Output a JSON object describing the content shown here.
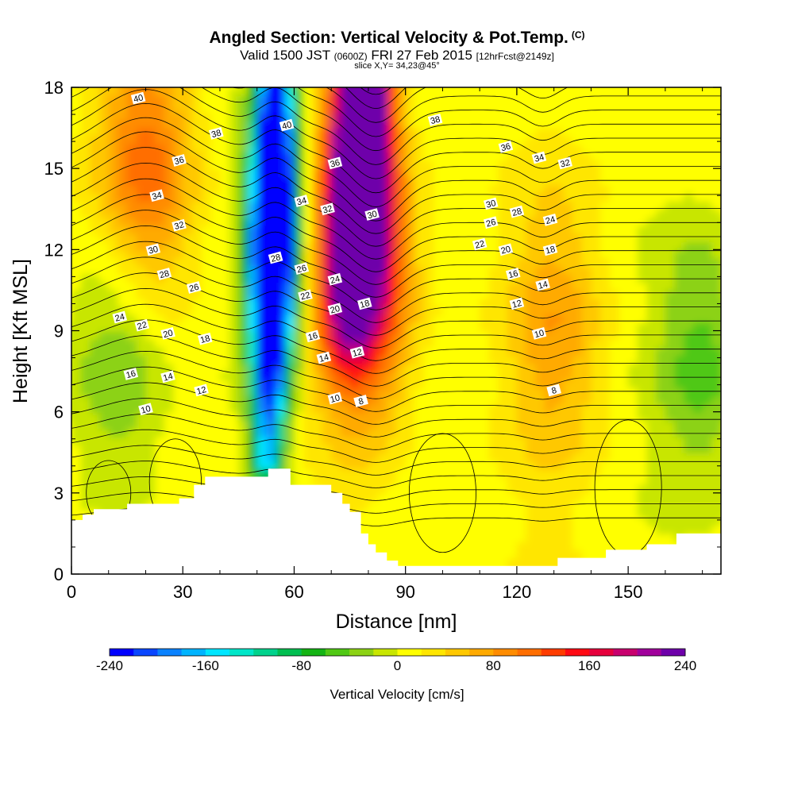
{
  "header": {
    "title_main": "Angled Section: Vertical Velocity & Pot.Temp.",
    "title_mark": "(C)",
    "valid_a": "Valid 1500 JST",
    "valid_b": "(0600Z)",
    "valid_c": "FRI 27 Feb 2015",
    "valid_d": "[12hrFcst@2149z]",
    "slice": "slice X,Y= 34,23@45°"
  },
  "chart_data": {
    "type": "heatmap",
    "xlabel": "Distance [nm]",
    "ylabel": "Height [Kft MSL]",
    "xlim": [
      0,
      175
    ],
    "ylim": [
      0,
      18
    ],
    "x_ticks": [
      0,
      30,
      60,
      90,
      120,
      150
    ],
    "y_ticks": [
      0,
      3,
      6,
      9,
      12,
      15,
      18
    ],
    "grid": false,
    "colorbar": {
      "title": "Vertical Velocity [cm/s]",
      "range": [
        -240,
        240
      ],
      "tick_values": [
        -240,
        -160,
        -80,
        0,
        80,
        160,
        240
      ],
      "colors": [
        "#0000ff",
        "#0a46ff",
        "#0a82ff",
        "#00b4ff",
        "#00e6ff",
        "#00e6c8",
        "#00d28c",
        "#00be50",
        "#14b414",
        "#50c814",
        "#8cd214",
        "#c8e600",
        "#ffff00",
        "#ffe600",
        "#ffc800",
        "#ffaa00",
        "#ff8c00",
        "#ff6e00",
        "#ff3c00",
        "#ff0a14",
        "#e6003c",
        "#c8006e",
        "#a0009b",
        "#6e00aa"
      ]
    },
    "velocity_features": [
      {
        "x": 54,
        "y": 11,
        "value": -180
      },
      {
        "x": 55,
        "y": 14,
        "value": -200
      },
      {
        "x": 78,
        "y": 16,
        "value": 220
      },
      {
        "x": 78,
        "y": 11,
        "value": 150
      },
      {
        "x": 20,
        "y": 15,
        "value": 100
      },
      {
        "x": 130,
        "y": 9,
        "value": 60
      },
      {
        "x": 13,
        "y": 8,
        "value": -60
      },
      {
        "x": 170,
        "y": 8,
        "value": -60
      }
    ],
    "terrain": [
      [
        0,
        2.0
      ],
      [
        3,
        2.2
      ],
      [
        6,
        2.4
      ],
      [
        15,
        2.6
      ],
      [
        29,
        2.8
      ],
      [
        33,
        3.3
      ],
      [
        36,
        3.6
      ],
      [
        52,
        3.6
      ],
      [
        53,
        3.9
      ],
      [
        58,
        3.9
      ],
      [
        59,
        3.3
      ],
      [
        67,
        3.3
      ],
      [
        70,
        3.0
      ],
      [
        73,
        2.6
      ],
      [
        75,
        2.3
      ],
      [
        78,
        1.5
      ],
      [
        80,
        1.1
      ],
      [
        82,
        0.8
      ],
      [
        85,
        0.5
      ],
      [
        88,
        0.3
      ],
      [
        128,
        0.3
      ],
      [
        131,
        0.6
      ],
      [
        142,
        0.6
      ],
      [
        144,
        0.9
      ],
      [
        152,
        0.9
      ],
      [
        155,
        1.1
      ],
      [
        160,
        1.1
      ],
      [
        163,
        1.5
      ],
      [
        175,
        1.5
      ]
    ],
    "contour_labels": [
      {
        "text": "40",
        "x": 18,
        "y": 17.6
      },
      {
        "text": "38",
        "x": 39,
        "y": 16.3
      },
      {
        "text": "36",
        "x": 29,
        "y": 15.3
      },
      {
        "text": "34",
        "x": 23,
        "y": 14.0
      },
      {
        "text": "32",
        "x": 29,
        "y": 12.9
      },
      {
        "text": "30",
        "x": 22,
        "y": 12.0
      },
      {
        "text": "28",
        "x": 25,
        "y": 11.1
      },
      {
        "text": "26",
        "x": 33,
        "y": 10.6
      },
      {
        "text": "24",
        "x": 13,
        "y": 9.5
      },
      {
        "text": "22",
        "x": 19,
        "y": 9.2
      },
      {
        "text": "20",
        "x": 26,
        "y": 8.9
      },
      {
        "text": "18",
        "x": 36,
        "y": 8.7
      },
      {
        "text": "16",
        "x": 16,
        "y": 7.4
      },
      {
        "text": "14",
        "x": 26,
        "y": 7.3
      },
      {
        "text": "12",
        "x": 35,
        "y": 6.8
      },
      {
        "text": "10",
        "x": 20,
        "y": 6.1
      },
      {
        "text": "40",
        "x": 58,
        "y": 16.6
      },
      {
        "text": "36",
        "x": 71,
        "y": 15.2
      },
      {
        "text": "34",
        "x": 62,
        "y": 13.8
      },
      {
        "text": "32",
        "x": 69,
        "y": 13.5
      },
      {
        "text": "30",
        "x": 81,
        "y": 13.3
      },
      {
        "text": "28",
        "x": 55,
        "y": 11.7
      },
      {
        "text": "26",
        "x": 62,
        "y": 11.3
      },
      {
        "text": "24",
        "x": 71,
        "y": 10.9
      },
      {
        "text": "22",
        "x": 63,
        "y": 10.3
      },
      {
        "text": "20",
        "x": 71,
        "y": 9.8
      },
      {
        "text": "18",
        "x": 79,
        "y": 10.0
      },
      {
        "text": "16",
        "x": 65,
        "y": 8.8
      },
      {
        "text": "14",
        "x": 68,
        "y": 8.0
      },
      {
        "text": "12",
        "x": 77,
        "y": 8.2
      },
      {
        "text": "10",
        "x": 71,
        "y": 6.5
      },
      {
        "text": "8",
        "x": 78,
        "y": 6.4
      },
      {
        "text": "38",
        "x": 98,
        "y": 16.8
      },
      {
        "text": "36",
        "x": 117,
        "y": 15.8
      },
      {
        "text": "34",
        "x": 126,
        "y": 15.4
      },
      {
        "text": "32",
        "x": 133,
        "y": 15.2
      },
      {
        "text": "30",
        "x": 113,
        "y": 13.7
      },
      {
        "text": "28",
        "x": 120,
        "y": 13.4
      },
      {
        "text": "26",
        "x": 113,
        "y": 13.0
      },
      {
        "text": "24",
        "x": 129,
        "y": 13.1
      },
      {
        "text": "22",
        "x": 110,
        "y": 12.2
      },
      {
        "text": "20",
        "x": 117,
        "y": 12.0
      },
      {
        "text": "18",
        "x": 129,
        "y": 12.0
      },
      {
        "text": "16",
        "x": 119,
        "y": 11.1
      },
      {
        "text": "14",
        "x": 127,
        "y": 10.7
      },
      {
        "text": "12",
        "x": 120,
        "y": 10.0
      },
      {
        "text": "10",
        "x": 126,
        "y": 8.9
      },
      {
        "text": "8",
        "x": 130,
        "y": 6.8
      }
    ]
  }
}
